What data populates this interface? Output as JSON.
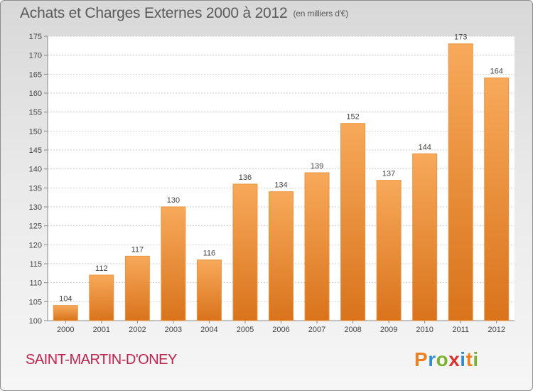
{
  "title": "Achats et Charges Externes 2000 à 2012",
  "unit_note": "(en milliers d'€)",
  "commune": "SAINT-MARTIN-D'ONEY",
  "logo_text": "Proxiti",
  "logo_colors": [
    "#f0801f",
    "#2c8fd6",
    "#7ab32e",
    "#e0302a",
    "#2c8fd6",
    "#f0801f",
    "#7ab32e"
  ],
  "colors": {
    "bar_top": "#f7a95a",
    "bar_bottom": "#d9731c",
    "commune": "#c0234f"
  },
  "chart_data": {
    "type": "bar",
    "title": "Achats et Charges Externes 2000 à 2012",
    "subtitle": "(en milliers d'€)",
    "categories": [
      "2000",
      "2001",
      "2002",
      "2003",
      "2004",
      "2005",
      "2006",
      "2007",
      "2008",
      "2009",
      "2010",
      "2011",
      "2012"
    ],
    "values": [
      104,
      112,
      117,
      130,
      116,
      136,
      134,
      139,
      152,
      137,
      144,
      173,
      164
    ],
    "ylim": [
      100,
      175
    ],
    "yticks": [
      100,
      105,
      110,
      115,
      120,
      125,
      130,
      135,
      140,
      145,
      150,
      155,
      160,
      165,
      170,
      175
    ],
    "grid": true,
    "data_labels": true
  }
}
